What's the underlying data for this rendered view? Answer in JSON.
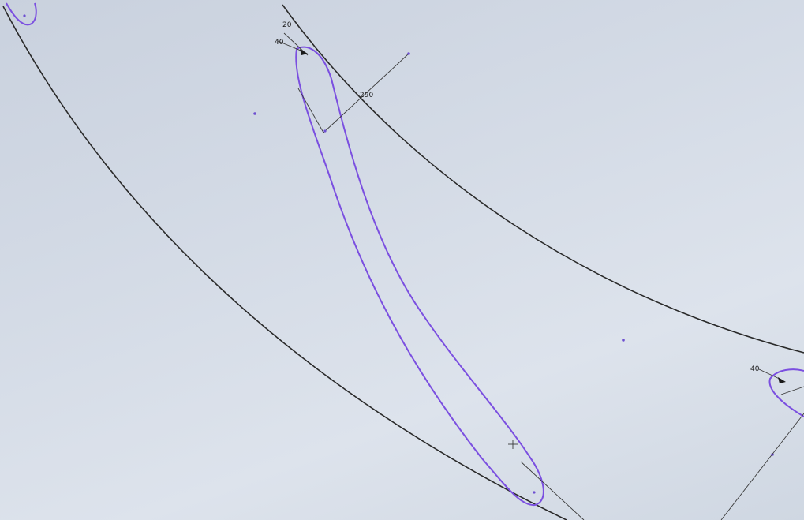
{
  "sketch": {
    "dimensions": {
      "top_left_angle": "20",
      "top_left_offset": "40",
      "center_radius": "290",
      "right_offset": "40"
    }
  },
  "colors": {
    "background": "#d4dbe6",
    "profile": "#7b4fe0",
    "edge": "#2a2a2a"
  }
}
